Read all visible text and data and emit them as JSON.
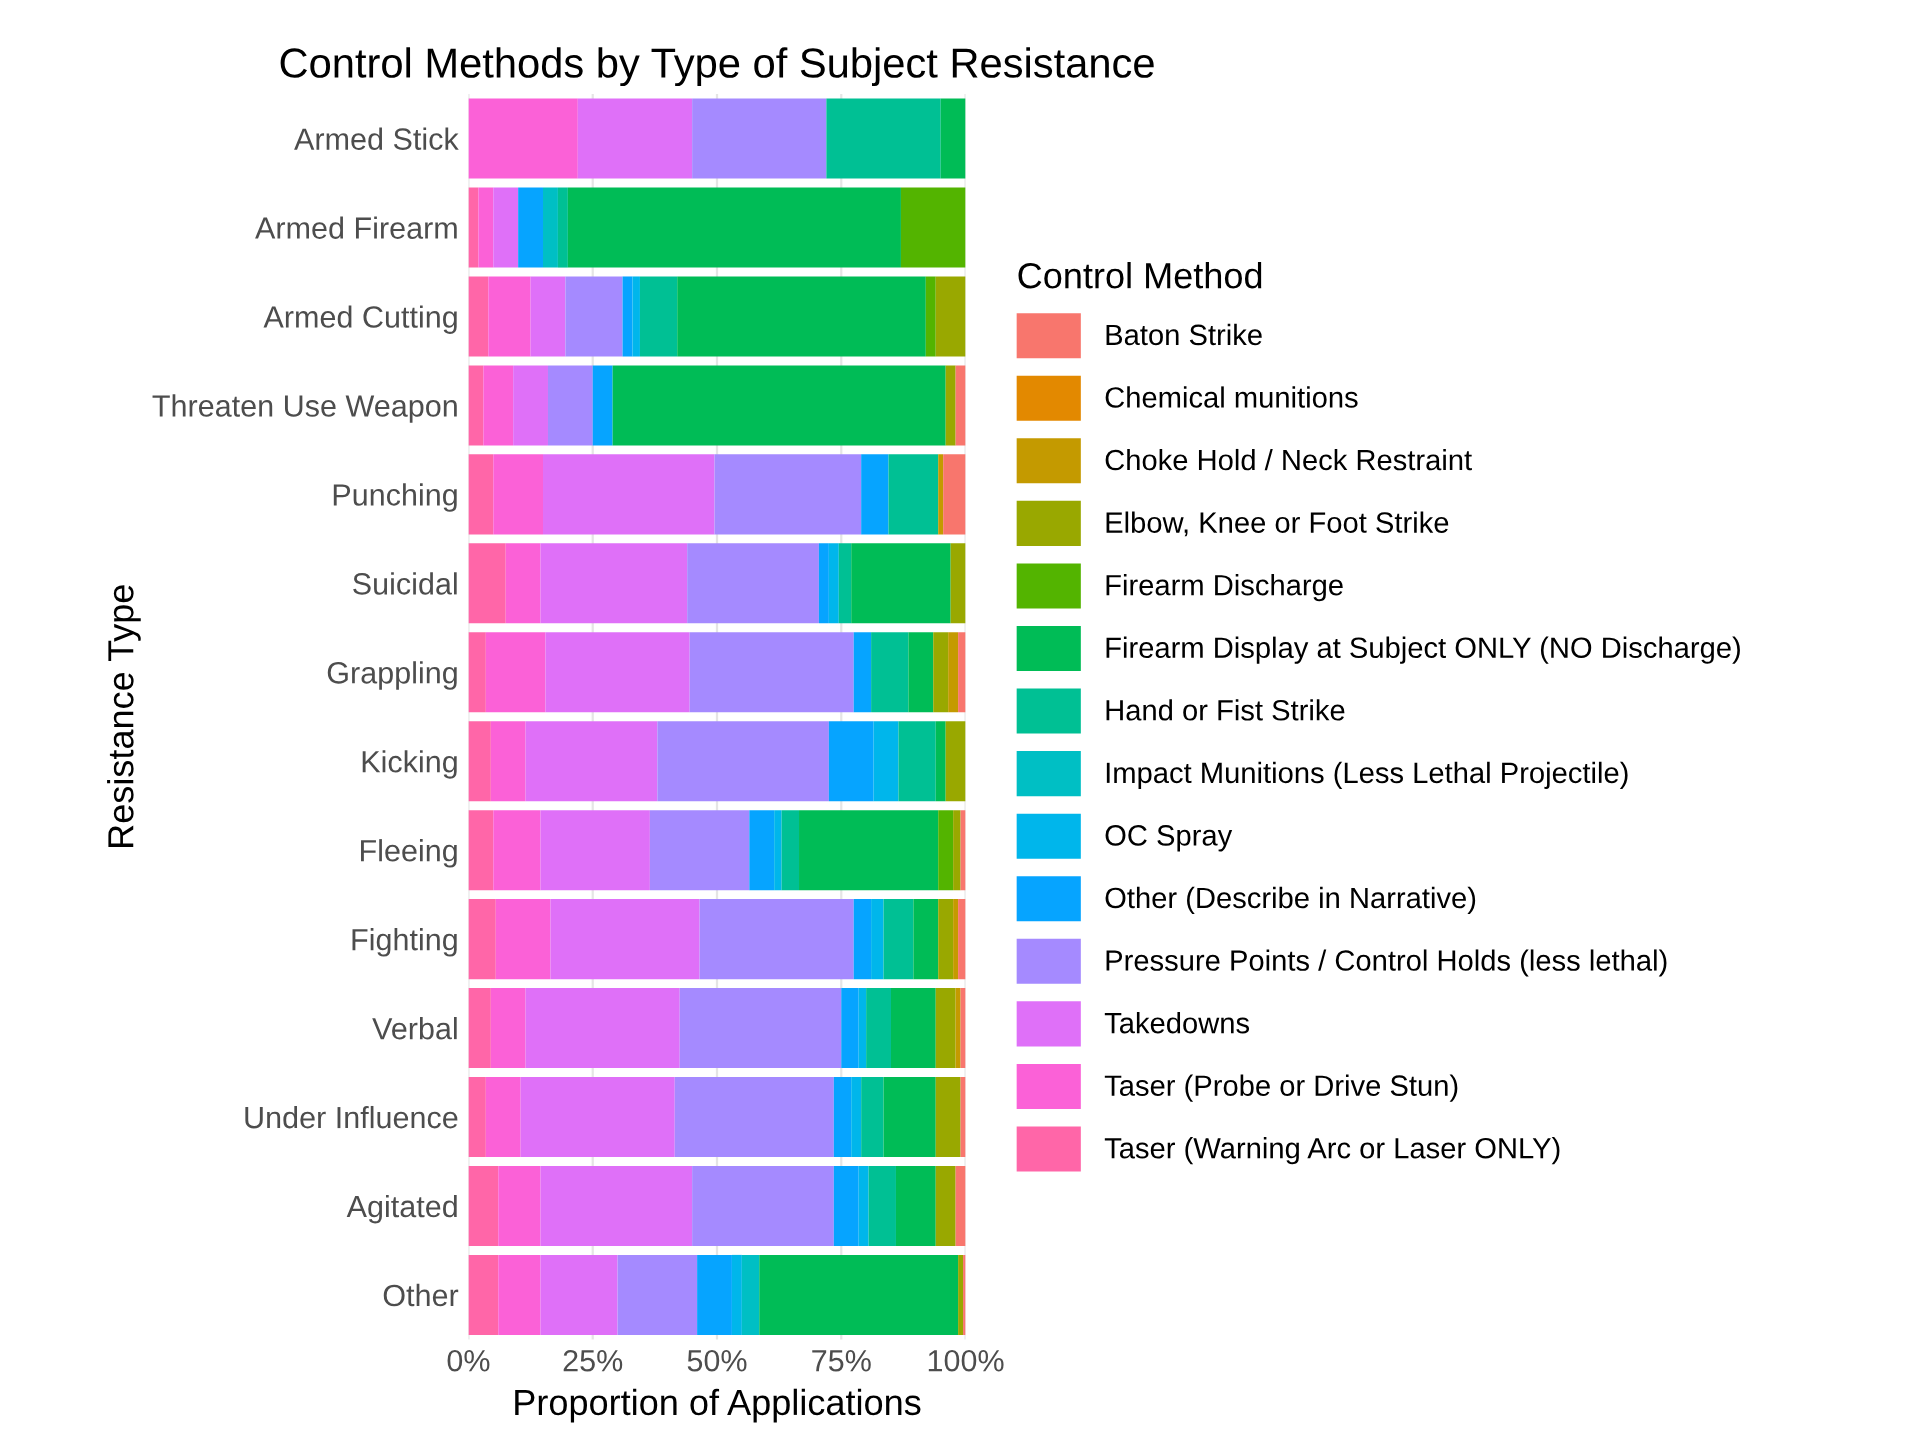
{
  "chart_data": {
    "type": "bar",
    "orientation": "horizontal",
    "stacked": true,
    "title": "Control Methods by Type of Subject Resistance",
    "xlabel": "Proportion of Applications",
    "ylabel": "Resistance Type",
    "legend_title": "Control Method",
    "legend": "right",
    "grid": "x",
    "categories": [
      "Armed Stick",
      "Armed Firearm",
      "Armed Cutting",
      "Threaten Use Weapon",
      "Punching",
      "Suicidal",
      "Grappling",
      "Kicking",
      "Fleeing",
      "Fighting",
      "Verbal",
      "Under Influence",
      "Agitated",
      "Other"
    ],
    "xlim": [
      0,
      100
    ],
    "xticks": [
      {
        "value": 0,
        "label": "0%"
      },
      {
        "value": 25,
        "label": "25%"
      },
      {
        "value": 50,
        "label": "50%"
      },
      {
        "value": 75,
        "label": "75%"
      },
      {
        "value": 100,
        "label": "100%"
      }
    ],
    "series": [
      {
        "name": "Taser (Warning Arc or Laser ONLY)",
        "color": "#ff66a8",
        "values": [
          0,
          2,
          4,
          3,
          5,
          7.5,
          3.5,
          4.5,
          5,
          5.5,
          4.5,
          3.5,
          6,
          6
        ]
      },
      {
        "name": "Taser (Probe or Drive Stun)",
        "color": "#fb61d7",
        "values": [
          22,
          3,
          8.5,
          6,
          10,
          7,
          12,
          7,
          9.5,
          11,
          7,
          7,
          8.5,
          8.5
        ]
      },
      {
        "name": "Takedowns",
        "color": "#df70f8",
        "values": [
          23,
          5,
          7,
          7,
          34.5,
          29.5,
          29,
          26.5,
          22,
          30,
          31,
          31,
          30.5,
          15.5
        ]
      },
      {
        "name": "Pressure Points / Control Holds (less lethal)",
        "color": "#a58aff",
        "values": [
          27,
          0,
          11.5,
          9,
          29.5,
          26.5,
          33,
          34.5,
          20,
          31,
          32.5,
          32,
          28.5,
          16
        ]
      },
      {
        "name": "Other (Describe in Narrative)",
        "color": "#06a4ff",
        "values": [
          0,
          5,
          2,
          4,
          5.5,
          2,
          3.5,
          9,
          5,
          3.5,
          3.5,
          3.5,
          5,
          7
        ]
      },
      {
        "name": "OC Spray",
        "color": "#00b6eb",
        "values": [
          0,
          0,
          1.5,
          0,
          0,
          2,
          0,
          5,
          1.5,
          2.5,
          1.5,
          2,
          2,
          2
        ]
      },
      {
        "name": "Impact Munitions (Less Lethal Projectile)",
        "color": "#00bfc4",
        "values": [
          0,
          3,
          0,
          0,
          0,
          0,
          0,
          0,
          0,
          0,
          0,
          0,
          0,
          3.5
        ]
      },
      {
        "name": "Hand or Fist Strike",
        "color": "#00c094",
        "values": [
          23,
          2,
          7.5,
          0,
          10,
          2.5,
          7.5,
          7.5,
          3.5,
          6,
          5,
          4.5,
          5.5,
          0
        ]
      },
      {
        "name": "Firearm Display at Subject ONLY (NO Discharge)",
        "color": "#00bc56",
        "values": [
          5,
          67,
          50,
          67,
          0,
          20,
          5,
          2,
          28,
          5,
          9,
          10.5,
          8,
          40
        ]
      },
      {
        "name": "Firearm Discharge",
        "color": "#53b400",
        "values": [
          0,
          13,
          2,
          0,
          0,
          0,
          0,
          0,
          3,
          0,
          0,
          0,
          0,
          0
        ]
      },
      {
        "name": "Elbow, Knee or Foot Strike",
        "color": "#99a800",
        "values": [
          0,
          0,
          6,
          2,
          0,
          3,
          3,
          4,
          1.5,
          3,
          4,
          5,
          4,
          1
        ]
      },
      {
        "name": "Choke Hold / Neck Restraint",
        "color": "#c49a00",
        "values": [
          0,
          0,
          0,
          0,
          1,
          0,
          2,
          0,
          0,
          1,
          1,
          0,
          0,
          0
        ]
      },
      {
        "name": "Chemical munitions",
        "color": "#e38900",
        "values": [
          0,
          0,
          0,
          0,
          0,
          0,
          0,
          0,
          0,
          0,
          0,
          0,
          0,
          0
        ]
      },
      {
        "name": "Baton Strike",
        "color": "#f8766d",
        "values": [
          0,
          0,
          0,
          2,
          4.5,
          0,
          1.5,
          0,
          1,
          1.5,
          1,
          1,
          2,
          0.5
        ]
      }
    ]
  }
}
